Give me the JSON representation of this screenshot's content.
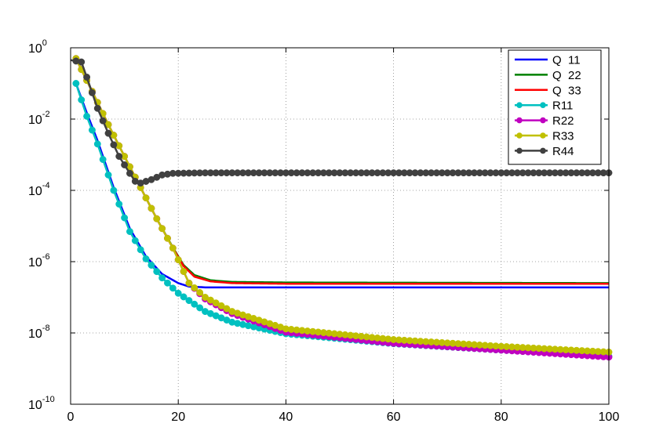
{
  "chart_data": {
    "type": "line",
    "title": "",
    "xlabel": "",
    "ylabel": "",
    "xlim": [
      0,
      100
    ],
    "ylim": [
      1e-10,
      1
    ],
    "yscale": "log",
    "grid": true,
    "legend_position": "top-right",
    "x_ticks": [
      "0",
      "20",
      "40",
      "60",
      "80",
      "100"
    ],
    "y_ticks": [
      {
        "base": "10",
        "exp": "0"
      },
      {
        "base": "10",
        "exp": "-2"
      },
      {
        "base": "10",
        "exp": "-4"
      },
      {
        "base": "10",
        "exp": "-6"
      },
      {
        "base": "10",
        "exp": "-8"
      },
      {
        "base": "10",
        "exp": "-10"
      }
    ],
    "series": [
      {
        "name": "Q  11",
        "color": "#0000ff",
        "marker": "none",
        "points": [
          [
            1,
            0.1
          ],
          [
            3,
            0.015
          ],
          [
            5,
            0.0025
          ],
          [
            8,
            0.00012
          ],
          [
            11,
            8.5e-06
          ],
          [
            14,
            1.4e-06
          ],
          [
            17,
            4.5e-07
          ],
          [
            20,
            2.5e-07
          ],
          [
            22,
            2e-07
          ],
          [
            25,
            1.9e-07
          ],
          [
            40,
            1.9e-07
          ],
          [
            100,
            1.9e-07
          ]
        ]
      },
      {
        "name": "Q  22",
        "color": "#008000",
        "marker": "none",
        "points": [
          [
            1,
            0.5
          ],
          [
            4,
            0.06
          ],
          [
            7,
            0.007
          ],
          [
            10,
            0.0009
          ],
          [
            13,
            0.00012
          ],
          [
            16,
            1.6e-05
          ],
          [
            19,
            2.5e-06
          ],
          [
            21,
            8e-07
          ],
          [
            23,
            4.2e-07
          ],
          [
            26,
            3e-07
          ],
          [
            30,
            2.7e-07
          ],
          [
            40,
            2.6e-07
          ],
          [
            100,
            2.5e-07
          ]
        ]
      },
      {
        "name": "Q  33",
        "color": "#ff0000",
        "marker": "none",
        "points": [
          [
            1,
            0.5
          ],
          [
            4,
            0.06
          ],
          [
            7,
            0.007
          ],
          [
            10,
            0.0009
          ],
          [
            13,
            0.00012
          ],
          [
            16,
            1.6e-05
          ],
          [
            19,
            2.4e-06
          ],
          [
            21,
            7.5e-07
          ],
          [
            23,
            3.8e-07
          ],
          [
            26,
            2.8e-07
          ],
          [
            30,
            2.5e-07
          ],
          [
            40,
            2.4e-07
          ],
          [
            100,
            2.4e-07
          ]
        ]
      },
      {
        "name": "R11",
        "color": "#00c0c0",
        "marker": "circle",
        "points": [
          [
            1,
            0.1
          ],
          [
            3,
            0.012
          ],
          [
            5,
            0.002
          ],
          [
            8,
            0.0001
          ],
          [
            11,
            7e-06
          ],
          [
            14,
            1.2e-06
          ],
          [
            17,
            3.5e-07
          ],
          [
            20,
            1.3e-07
          ],
          [
            25,
            4e-08
          ],
          [
            30,
            2e-08
          ],
          [
            40,
            9.5e-09
          ],
          [
            60,
            5e-09
          ],
          [
            80,
            3.3e-09
          ],
          [
            100,
            2.2e-09
          ]
        ]
      },
      {
        "name": "R22",
        "color": "#c000c0",
        "marker": "circle",
        "points": [
          [
            1,
            0.5
          ],
          [
            4,
            0.06
          ],
          [
            7,
            0.007
          ],
          [
            10,
            0.0009
          ],
          [
            13,
            0.00012
          ],
          [
            16,
            1.6e-05
          ],
          [
            19,
            2.4e-06
          ],
          [
            22,
            2.5e-07
          ],
          [
            25,
            9e-08
          ],
          [
            30,
            3.5e-08
          ],
          [
            40,
            1.05e-08
          ],
          [
            60,
            5.1e-09
          ],
          [
            80,
            3.3e-09
          ],
          [
            100,
            2.1e-09
          ]
        ]
      },
      {
        "name": "R33",
        "color": "#c0c000",
        "marker": "circle",
        "points": [
          [
            1,
            0.5
          ],
          [
            4,
            0.06
          ],
          [
            7,
            0.007
          ],
          [
            10,
            0.0009
          ],
          [
            13,
            0.00012
          ],
          [
            16,
            1.6e-05
          ],
          [
            19,
            2.4e-06
          ],
          [
            22,
            2.5e-07
          ],
          [
            25,
            1e-07
          ],
          [
            30,
            4e-08
          ],
          [
            40,
            1.3e-08
          ],
          [
            60,
            6.5e-09
          ],
          [
            80,
            4.2e-09
          ],
          [
            100,
            2.9e-09
          ]
        ]
      },
      {
        "name": "R44",
        "color": "#404040",
        "marker": "circle",
        "points": [
          [
            0,
            0.45
          ],
          [
            2,
            0.4
          ],
          [
            3,
            0.15
          ],
          [
            5,
            0.02
          ],
          [
            7,
            0.004
          ],
          [
            9,
            0.0009
          ],
          [
            11,
            0.0003
          ],
          [
            12,
            0.00018
          ],
          [
            13,
            0.00016
          ],
          [
            15,
            0.0002
          ],
          [
            17,
            0.00027
          ],
          [
            19,
            0.0003
          ],
          [
            25,
            0.00031
          ],
          [
            40,
            0.00031
          ],
          [
            100,
            0.00031
          ]
        ]
      }
    ]
  }
}
